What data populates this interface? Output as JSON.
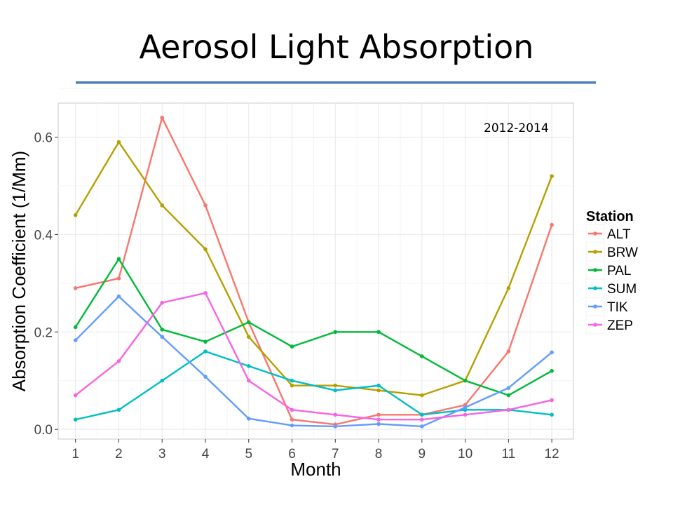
{
  "slide": {
    "title": "Aerosol Light Absorption"
  },
  "chart_data": {
    "type": "line",
    "title": "",
    "xlabel": "Month",
    "ylabel": "Absorption Coefficient (1/Mm)",
    "x": [
      1,
      2,
      3,
      4,
      5,
      6,
      7,
      8,
      9,
      10,
      11,
      12
    ],
    "xlim": [
      0.6,
      12.5
    ],
    "ylim": [
      -0.02,
      0.67
    ],
    "yticks": [
      0.0,
      0.2,
      0.4,
      0.6
    ],
    "ytick_labels": [
      "0.0",
      "0.2",
      "0.4",
      "0.6"
    ],
    "annotation": "2012-2014",
    "legend": {
      "title": "Station",
      "placement": "right"
    },
    "grid": true,
    "series": [
      {
        "name": "ALT",
        "color": "#f8766d",
        "values": [
          0.29,
          0.31,
          0.64,
          0.46,
          0.22,
          0.02,
          0.01,
          0.03,
          0.03,
          0.05,
          0.16,
          0.42
        ]
      },
      {
        "name": "BRW",
        "color": "#b79f00",
        "values": [
          0.44,
          0.59,
          0.46,
          0.37,
          0.19,
          0.09,
          0.09,
          0.08,
          0.07,
          0.1,
          0.29,
          0.52
        ]
      },
      {
        "name": "PAL",
        "color": "#00ba38",
        "values": [
          0.21,
          0.35,
          0.205,
          0.18,
          0.22,
          0.17,
          0.2,
          0.2,
          0.15,
          0.1,
          0.07,
          0.12
        ]
      },
      {
        "name": "SUM",
        "color": "#00bfc4",
        "values": [
          0.02,
          0.04,
          0.1,
          0.16,
          0.13,
          0.1,
          0.08,
          0.09,
          0.03,
          0.04,
          0.04,
          0.03
        ]
      },
      {
        "name": "TIK",
        "color": "#619cff",
        "values": [
          0.183,
          0.273,
          0.19,
          0.108,
          0.022,
          0.008,
          0.006,
          0.011,
          0.006,
          0.045,
          0.085,
          0.158
        ]
      },
      {
        "name": "ZEP",
        "color": "#f564e3",
        "values": [
          0.07,
          0.14,
          0.26,
          0.28,
          0.1,
          0.04,
          0.03,
          0.02,
          0.02,
          0.03,
          0.04,
          0.06
        ]
      }
    ]
  }
}
